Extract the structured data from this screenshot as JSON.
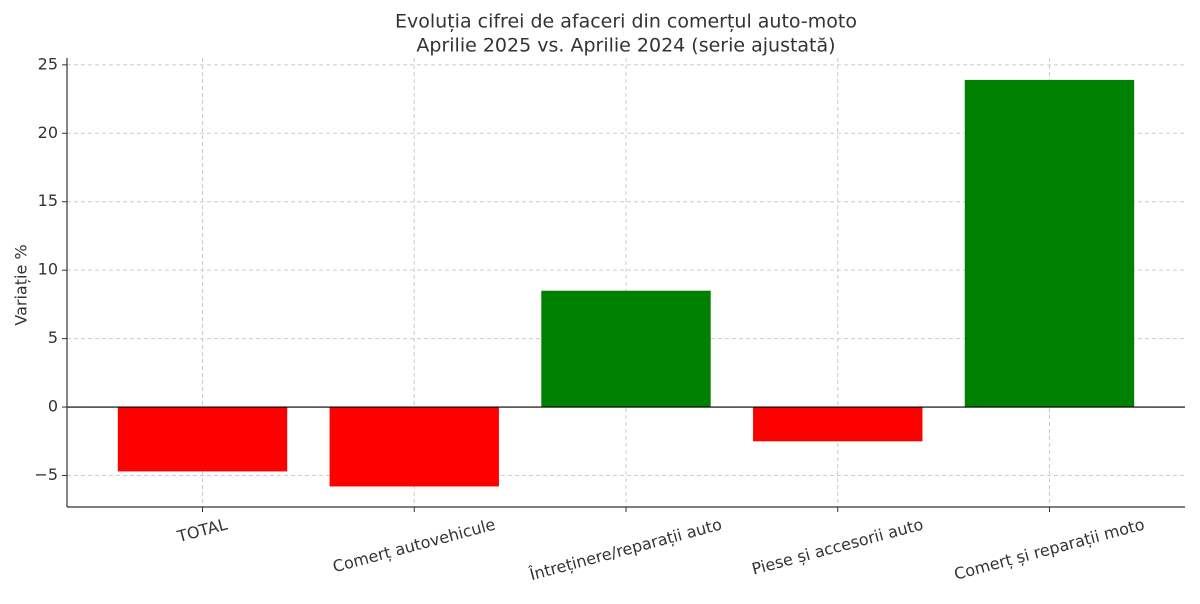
{
  "chart_data": {
    "type": "bar",
    "title": "Evoluția cifrei de afaceri din comerțul auto-moto",
    "subtitle": "Aprilie 2025 vs. Aprilie 2024 (serie ajustată)",
    "y_label": "Variație %",
    "categories": [
      "TOTAL",
      "Comerț autovehicule",
      "Întreținere/reparații auto",
      "Piese și accesorii auto",
      "Comerț și reparații moto"
    ],
    "values": [
      -4.7,
      -5.8,
      8.5,
      -2.5,
      23.9
    ],
    "colors": [
      "#ff0000",
      "#ff0000",
      "#008000",
      "#ff0000",
      "#008000"
    ],
    "ylim": [
      -7.3,
      25.5
    ],
    "yticks": [
      {
        "value": -5,
        "label": "−5"
      },
      0,
      5,
      10,
      15,
      20,
      25
    ],
    "grid": true
  }
}
